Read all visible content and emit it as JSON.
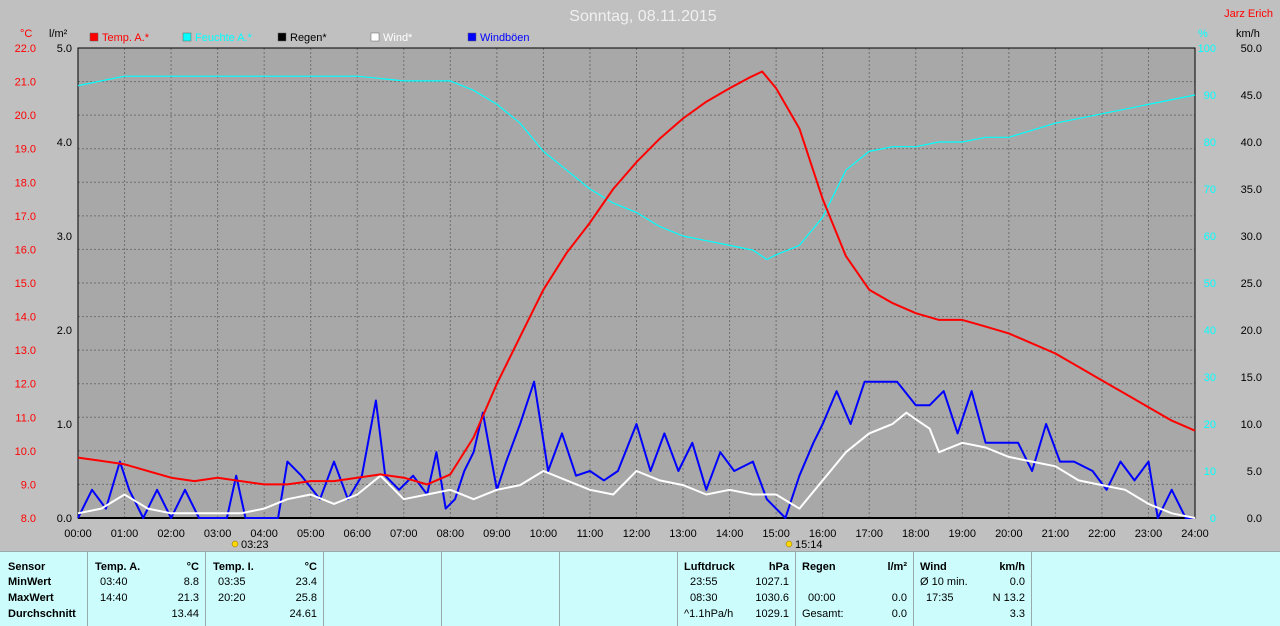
{
  "header": {
    "title": "Sonntag, 08.11.2015",
    "author": "Jarz Erich",
    "unit_temp": "°C",
    "unit_rain": "l/m²",
    "unit_hum": "%",
    "unit_wind": "km/h"
  },
  "legend": [
    {
      "label": "Temp. A.*",
      "color": "#ff0000"
    },
    {
      "label": "Feuchte A.*",
      "color": "#00ffff"
    },
    {
      "label": "Regen*",
      "color": "#000000"
    },
    {
      "label": "Wind*",
      "color": "#ffffff"
    },
    {
      "label": "Windböen",
      "color": "#0000ff"
    }
  ],
  "markers": [
    {
      "label": "03:23",
      "icon": "sunrise-icon"
    },
    {
      "label": "15:14",
      "icon": "sunset-icon"
    }
  ],
  "chart_data": {
    "type": "line",
    "title": "Sonntag, 08.11.2015",
    "x_unit": "hours",
    "xlim": [
      0,
      24
    ],
    "x_tick_labels": [
      "00:00",
      "01:00",
      "02:00",
      "03:00",
      "04:00",
      "05:00",
      "06:00",
      "07:00",
      "08:00",
      "09:00",
      "10:00",
      "11:00",
      "12:00",
      "13:00",
      "14:00",
      "15:00",
      "16:00",
      "17:00",
      "18:00",
      "19:00",
      "20:00",
      "21:00",
      "22:00",
      "23:00",
      "24:00"
    ],
    "axes": {
      "temp": {
        "unit": "°C",
        "ylim": [
          8,
          22
        ],
        "ticks": [
          "8.0",
          "9.0",
          "10.0",
          "11.0",
          "12.0",
          "13.0",
          "14.0",
          "15.0",
          "16.0",
          "17.0",
          "18.0",
          "19.0",
          "20.0",
          "21.0",
          "22.0"
        ]
      },
      "rain": {
        "unit": "l/m²",
        "ylim": [
          0,
          5
        ],
        "ticks": [
          "0.0",
          "1.0",
          "2.0",
          "3.0",
          "4.0",
          "5.0"
        ]
      },
      "humidity": {
        "unit": "%",
        "ylim": [
          0,
          100
        ],
        "ticks": [
          "0",
          "10",
          "20",
          "30",
          "40",
          "50",
          "60",
          "70",
          "80",
          "90",
          "100"
        ]
      },
      "wind": {
        "unit": "km/h",
        "ylim": [
          0,
          50
        ],
        "ticks": [
          "0.0",
          "5.0",
          "10.0",
          "15.0",
          "20.0",
          "25.0",
          "30.0",
          "35.0",
          "40.0",
          "45.0",
          "50.0"
        ]
      }
    },
    "grid": true,
    "series": [
      {
        "name": "Temp. A.*",
        "color": "#ff0000",
        "axis": "temp",
        "points": [
          [
            0,
            9.8
          ],
          [
            0.5,
            9.7
          ],
          [
            1,
            9.6
          ],
          [
            1.5,
            9.4
          ],
          [
            2,
            9.2
          ],
          [
            2.5,
            9.1
          ],
          [
            3,
            9.2
          ],
          [
            3.5,
            9.1
          ],
          [
            4,
            9.0
          ],
          [
            4.5,
            9.0
          ],
          [
            5,
            9.1
          ],
          [
            5.5,
            9.1
          ],
          [
            6,
            9.2
          ],
          [
            6.5,
            9.3
          ],
          [
            7,
            9.2
          ],
          [
            7.5,
            9.0
          ],
          [
            8,
            9.3
          ],
          [
            8.5,
            10.4
          ],
          [
            9,
            12.0
          ],
          [
            9.5,
            13.4
          ],
          [
            10,
            14.8
          ],
          [
            10.5,
            15.9
          ],
          [
            11,
            16.8
          ],
          [
            11.5,
            17.8
          ],
          [
            12,
            18.6
          ],
          [
            12.5,
            19.3
          ],
          [
            13,
            19.9
          ],
          [
            13.5,
            20.4
          ],
          [
            14,
            20.8
          ],
          [
            14.4,
            21.1
          ],
          [
            14.7,
            21.3
          ],
          [
            15,
            20.8
          ],
          [
            15.5,
            19.6
          ],
          [
            16,
            17.5
          ],
          [
            16.5,
            15.8
          ],
          [
            17,
            14.8
          ],
          [
            17.5,
            14.4
          ],
          [
            18,
            14.1
          ],
          [
            18.5,
            13.9
          ],
          [
            19,
            13.9
          ],
          [
            19.5,
            13.7
          ],
          [
            20,
            13.5
          ],
          [
            20.5,
            13.2
          ],
          [
            21,
            12.9
          ],
          [
            21.5,
            12.5
          ],
          [
            22,
            12.1
          ],
          [
            22.5,
            11.7
          ],
          [
            23,
            11.3
          ],
          [
            23.5,
            10.9
          ],
          [
            24,
            10.6
          ]
        ]
      },
      {
        "name": "Feuchte A.*",
        "color": "#00ffff",
        "axis": "humidity",
        "points": [
          [
            0,
            92
          ],
          [
            1,
            94
          ],
          [
            2,
            94
          ],
          [
            3,
            94
          ],
          [
            4,
            94
          ],
          [
            5,
            94
          ],
          [
            6,
            94
          ],
          [
            7,
            93
          ],
          [
            8,
            93
          ],
          [
            8.5,
            91
          ],
          [
            9,
            88
          ],
          [
            9.5,
            84
          ],
          [
            10,
            78
          ],
          [
            10.5,
            74
          ],
          [
            11,
            70
          ],
          [
            11.5,
            67
          ],
          [
            12,
            65
          ],
          [
            12.5,
            62
          ],
          [
            13,
            60
          ],
          [
            13.5,
            59
          ],
          [
            14,
            58
          ],
          [
            14.5,
            57
          ],
          [
            14.8,
            55
          ],
          [
            15,
            56
          ],
          [
            15.5,
            58
          ],
          [
            16,
            64
          ],
          [
            16.5,
            74
          ],
          [
            17,
            78
          ],
          [
            17.5,
            79
          ],
          [
            18,
            79
          ],
          [
            18.5,
            80
          ],
          [
            19,
            80
          ],
          [
            19.5,
            81
          ],
          [
            20,
            81
          ],
          [
            21,
            84
          ],
          [
            22,
            86
          ],
          [
            23,
            88
          ],
          [
            24,
            90
          ]
        ]
      },
      {
        "name": "Regen*",
        "color": "#000000",
        "axis": "rain",
        "points": [
          [
            0,
            0
          ],
          [
            24,
            0
          ]
        ]
      },
      {
        "name": "Wind*",
        "color": "#ffffff",
        "axis": "wind",
        "points": [
          [
            0,
            0.5
          ],
          [
            0.5,
            1
          ],
          [
            1,
            2.5
          ],
          [
            1.5,
            1
          ],
          [
            2,
            0.5
          ],
          [
            2.5,
            0.5
          ],
          [
            3,
            0.5
          ],
          [
            3.5,
            0.5
          ],
          [
            4,
            1
          ],
          [
            4.5,
            2
          ],
          [
            5,
            2.5
          ],
          [
            5.5,
            1.5
          ],
          [
            6,
            2.5
          ],
          [
            6.5,
            4.5
          ],
          [
            7,
            2
          ],
          [
            7.5,
            2.5
          ],
          [
            8,
            3
          ],
          [
            8.5,
            2
          ],
          [
            9,
            3
          ],
          [
            9.5,
            3.5
          ],
          [
            10,
            5
          ],
          [
            10.5,
            4
          ],
          [
            11,
            3
          ],
          [
            11.5,
            2.5
          ],
          [
            12,
            5
          ],
          [
            12.5,
            4
          ],
          [
            13,
            3.5
          ],
          [
            13.5,
            2.5
          ],
          [
            14,
            3
          ],
          [
            14.5,
            2.5
          ],
          [
            15,
            2.5
          ],
          [
            15.5,
            1
          ],
          [
            16,
            4
          ],
          [
            16.5,
            7
          ],
          [
            17,
            9
          ],
          [
            17.5,
            10
          ],
          [
            17.8,
            11.2
          ],
          [
            18,
            10.5
          ],
          [
            18.3,
            9.5
          ],
          [
            18.5,
            7
          ],
          [
            19,
            8
          ],
          [
            19.5,
            7.5
          ],
          [
            20,
            6.5
          ],
          [
            20.5,
            6
          ],
          [
            21,
            5.5
          ],
          [
            21.5,
            4
          ],
          [
            22,
            3.5
          ],
          [
            22.5,
            3
          ],
          [
            23,
            1.5
          ],
          [
            23.5,
            0.5
          ],
          [
            24,
            0
          ]
        ]
      },
      {
        "name": "Windböen",
        "color": "#0000ff",
        "axis": "wind",
        "points": [
          [
            0,
            0
          ],
          [
            0.3,
            3
          ],
          [
            0.6,
            1
          ],
          [
            0.9,
            6
          ],
          [
            1.1,
            3
          ],
          [
            1.4,
            0
          ],
          [
            1.7,
            3
          ],
          [
            2,
            0
          ],
          [
            2.3,
            3
          ],
          [
            2.6,
            0
          ],
          [
            3.2,
            0
          ],
          [
            3.4,
            4.5
          ],
          [
            3.6,
            0
          ],
          [
            4.3,
            0
          ],
          [
            4.5,
            6
          ],
          [
            4.8,
            4.5
          ],
          [
            5.2,
            2
          ],
          [
            5.5,
            6
          ],
          [
            5.8,
            2
          ],
          [
            6.1,
            4.5
          ],
          [
            6.4,
            12.5
          ],
          [
            6.6,
            4.5
          ],
          [
            6.9,
            3
          ],
          [
            7.2,
            4.5
          ],
          [
            7.5,
            2.5
          ],
          [
            7.7,
            7
          ],
          [
            7.9,
            1
          ],
          [
            8.1,
            2
          ],
          [
            8.3,
            5
          ],
          [
            8.5,
            7
          ],
          [
            8.7,
            11.2
          ],
          [
            9,
            3
          ],
          [
            9.2,
            6
          ],
          [
            9.5,
            10
          ],
          [
            9.8,
            14.5
          ],
          [
            10.1,
            5
          ],
          [
            10.4,
            9
          ],
          [
            10.7,
            4.5
          ],
          [
            11,
            5
          ],
          [
            11.3,
            4
          ],
          [
            11.6,
            5
          ],
          [
            12,
            10
          ],
          [
            12.3,
            5
          ],
          [
            12.6,
            9
          ],
          [
            12.9,
            5
          ],
          [
            13.2,
            8
          ],
          [
            13.5,
            3
          ],
          [
            13.8,
            7
          ],
          [
            14.1,
            5
          ],
          [
            14.5,
            6
          ],
          [
            14.8,
            2
          ],
          [
            15.2,
            0
          ],
          [
            15.5,
            4.5
          ],
          [
            15.8,
            8
          ],
          [
            16,
            10
          ],
          [
            16.3,
            13.5
          ],
          [
            16.6,
            10
          ],
          [
            16.9,
            14.5
          ],
          [
            17.2,
            14.5
          ],
          [
            17.6,
            14.5
          ],
          [
            18,
            12
          ],
          [
            18.3,
            12
          ],
          [
            18.6,
            13.5
          ],
          [
            18.9,
            9
          ],
          [
            19.2,
            13.5
          ],
          [
            19.5,
            8
          ],
          [
            19.8,
            8
          ],
          [
            20.2,
            8
          ],
          [
            20.5,
            5
          ],
          [
            20.8,
            10
          ],
          [
            21.1,
            6
          ],
          [
            21.4,
            6
          ],
          [
            21.8,
            5
          ],
          [
            22.1,
            3
          ],
          [
            22.4,
            6
          ],
          [
            22.7,
            4
          ],
          [
            23,
            6
          ],
          [
            23.2,
            0
          ],
          [
            23.5,
            3
          ],
          [
            23.8,
            0
          ],
          [
            24,
            0
          ]
        ]
      }
    ]
  },
  "stats": {
    "temp_a": {
      "headers": [
        "Sensor",
        "Temp. A.",
        "°C"
      ],
      "rows": [
        [
          "MinWert",
          "03:40",
          "8.8"
        ],
        [
          "MaxWert",
          "14:40",
          "21.3"
        ],
        [
          "Durchschnitt",
          "",
          "13.44"
        ]
      ]
    },
    "temp_i": {
      "headers": [
        "Temp. I.",
        "°C"
      ],
      "rows": [
        [
          "03:35",
          "23.4"
        ],
        [
          "20:20",
          "25.8"
        ],
        [
          "",
          "24.61"
        ]
      ]
    },
    "pressure": {
      "headers": [
        "Luftdruck",
        "hPa"
      ],
      "rows": [
        [
          "23:55",
          "1027.1"
        ],
        [
          "08:30",
          "1030.6"
        ],
        [
          "^1.1hPa/h",
          "1029.1"
        ]
      ]
    },
    "rain": {
      "headers": [
        "Regen",
        "l/m²"
      ],
      "rows": [
        [
          "",
          ""
        ],
        [
          "00:00",
          "0.0"
        ],
        [
          "Gesamt:",
          "0.0"
        ]
      ]
    },
    "wind": {
      "headers": [
        "Wind",
        "km/h"
      ],
      "rows": [
        [
          "Ø 10 min.",
          "0.0"
        ],
        [
          "17:35",
          "N 13.2"
        ],
        [
          "",
          "3.3"
        ]
      ]
    }
  }
}
